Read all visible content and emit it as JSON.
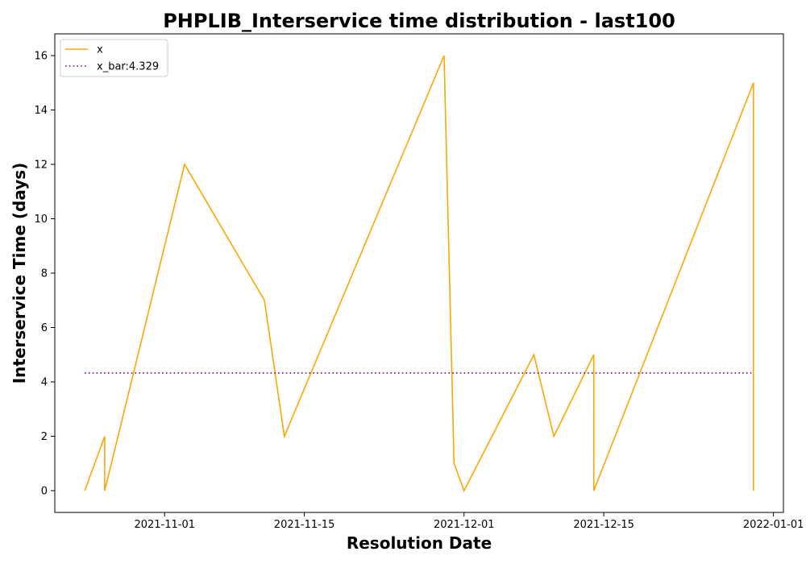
{
  "chart_data": {
    "type": "line",
    "title": "PHPLIB_Interservice time distribution - last100",
    "xlabel": "Resolution Date",
    "ylabel": "Interservice Time (days)",
    "xlim": [
      "2021-10-21",
      "2022-01-02"
    ],
    "ylim": [
      -0.8,
      16.8
    ],
    "x_ticks": [
      "2021-11-01",
      "2021-11-15",
      "2021-12-01",
      "2021-12-15",
      "2022-01-01"
    ],
    "y_ticks": [
      0,
      2,
      4,
      6,
      8,
      10,
      12,
      14,
      16
    ],
    "grid": false,
    "legend_position": "top-left",
    "series": [
      {
        "name": "x",
        "color": "#ffa500",
        "style": "solid",
        "x": [
          "2021-10-24",
          "2021-10-26",
          "2021-10-26",
          "2021-11-03",
          "2021-11-11",
          "2021-11-13",
          "2021-11-29",
          "2021-11-30",
          "2021-12-01",
          "2021-12-08",
          "2021-12-10",
          "2021-12-14",
          "2021-12-14",
          "2021-12-30",
          "2021-12-30"
        ],
        "y": [
          0,
          2,
          0,
          12,
          7,
          2,
          16,
          1,
          0,
          5,
          2,
          5,
          0,
          15,
          0
        ]
      },
      {
        "name": "x_bar:4.329",
        "color": "#800080",
        "style": "dotted",
        "x": [
          "2021-10-24",
          "2021-12-30"
        ],
        "y": [
          4.329,
          4.329
        ]
      }
    ]
  }
}
